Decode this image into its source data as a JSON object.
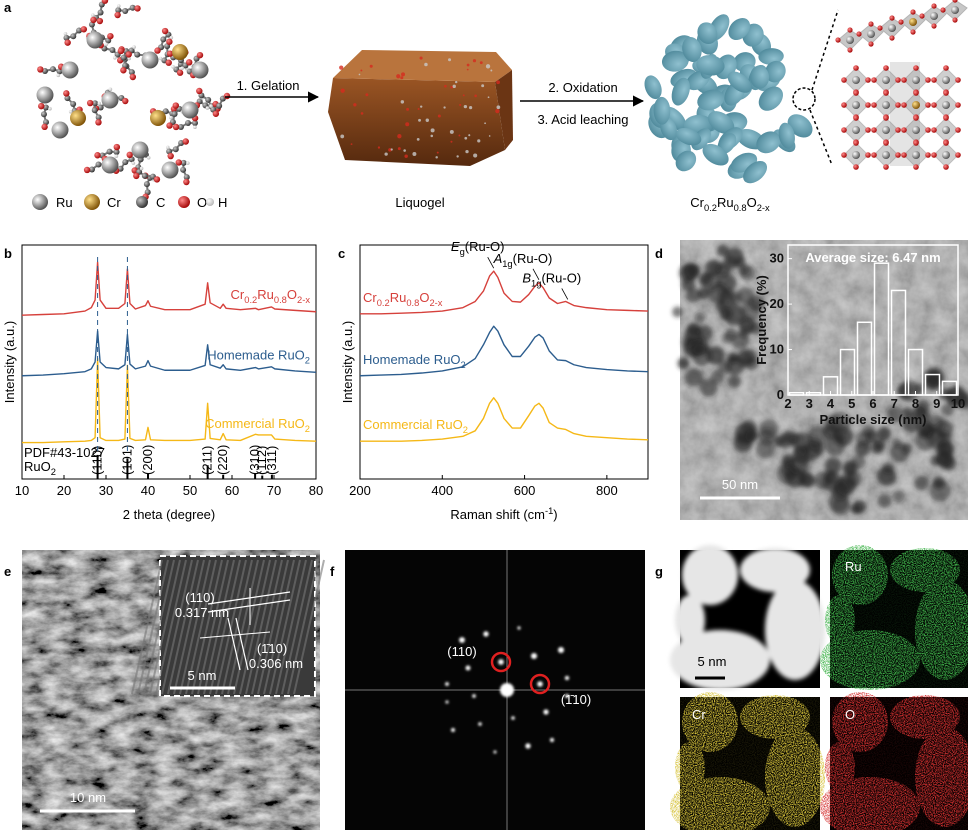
{
  "figure": {
    "panel_labels": [
      "a",
      "b",
      "c",
      "d",
      "e",
      "f",
      "g"
    ],
    "a": {
      "elements": [
        "Ru",
        "Cr",
        "C",
        "O",
        "H"
      ],
      "step1": "1. Gelation",
      "step2": "2. Oxidation",
      "step3": "3. Acid leaching",
      "gel": "Liquogel",
      "product": [
        "Cr",
        "0.2",
        "Ru",
        "0.8",
        "O",
        "2-x"
      ]
    },
    "d": {
      "scale_bar": "50 nm"
    },
    "e": {
      "plane1": "(110)",
      "d1": "0.317 nm",
      "plane2": "(1̄10)",
      "d2": "0.306 nm",
      "inset_scale": "5 nm",
      "scale_bar": "10 nm"
    },
    "f": {
      "plane1": "(110)",
      "plane2": "(1̄10)"
    },
    "g": {
      "scale_bar": "5 nm",
      "maps": [
        "Ru",
        "Cr",
        "O"
      ]
    }
  },
  "chart_data": [
    {
      "type": "line",
      "x_label": "2 theta (degree)",
      "y_label": "Intensity (a.u.)",
      "xlim": [
        10,
        80
      ],
      "xticks": [
        10,
        20,
        30,
        40,
        50,
        60,
        70,
        80
      ],
      "ylim": [
        -4,
        30
      ],
      "x": [
        10,
        15,
        20,
        25,
        26.5,
        27.4,
        28,
        28.6,
        30,
        33,
        34.5,
        35.1,
        35.7,
        37,
        39.4,
        40,
        40.6,
        44,
        50,
        53.6,
        54.2,
        54.8,
        57.2,
        57.9,
        58.6,
        62,
        65.6,
        66.3,
        69.4,
        70.2,
        75,
        80
      ],
      "series": [
        {
          "name": [
            "Cr",
            "0.2",
            "Ru",
            "0.8",
            "O",
            "2-x"
          ],
          "color": "#d6413c",
          "values": [
            19.8,
            19.9,
            20.0,
            20.4,
            20.9,
            22,
            27.5,
            22,
            20.8,
            20.8,
            21.5,
            26.5,
            21.5,
            20.7,
            21.2,
            21.9,
            21.1,
            20.6,
            20.6,
            21.4,
            24.5,
            21.6,
            20.8,
            21.4,
            20.8,
            20.6,
            20.8,
            20.6,
            21.0,
            20.7,
            20.5,
            20.3
          ]
        },
        {
          "name": [
            "Homemade RuO",
            "2"
          ],
          "color": "#2c5d8e",
          "values": [
            11,
            11.1,
            11.3,
            11.6,
            12,
            13,
            17.5,
            13,
            12.2,
            12.0,
            12.6,
            17,
            12.7,
            12,
            12.4,
            13.2,
            12.4,
            11.8,
            11.8,
            12.5,
            15.5,
            12.6,
            12.1,
            12.6,
            12.0,
            11.8,
            12.2,
            12.0,
            12.3,
            12.0,
            11.7,
            11.5
          ]
        },
        {
          "name": [
            "Commercial RuO",
            "2"
          ],
          "color": "#f5b817",
          "values": [
            1.3,
            1.3,
            1.4,
            1.5,
            1.6,
            2.0,
            13.5,
            2.0,
            1.6,
            1.6,
            1.8,
            12.5,
            1.9,
            1.6,
            1.7,
            3.5,
            1.7,
            1.6,
            1.6,
            1.8,
            7.0,
            1.9,
            1.7,
            2.6,
            1.7,
            1.6,
            2.5,
            2.4,
            2.4,
            1.8,
            1.6,
            1.5
          ]
        }
      ],
      "reference": {
        "label": "PDF#43-1027",
        "material": [
          "RuO",
          "2"
        ],
        "positions": [
          28.0,
          35.1,
          40.0,
          54.2,
          57.9,
          65.5,
          67.2,
          69.5
        ],
        "heights": [
          3.5,
          3,
          0.8,
          2,
          0.6,
          0.8,
          0.5,
          0.6
        ],
        "labels": [
          "(110)",
          "(101)",
          "(200)",
          "(211)",
          "(220)",
          "(310)",
          "(112)",
          "(311)"
        ]
      }
    },
    {
      "type": "line",
      "x_label": [
        "Raman shift (cm",
        "-1",
        ")"
      ],
      "y_label": "Intensity (a.u.)",
      "xlim": [
        200,
        900
      ],
      "xticks": [
        200,
        400,
        600,
        800
      ],
      "ylim": [
        -4,
        30
      ],
      "x": [
        200,
        250,
        300,
        350,
        400,
        450,
        480,
        500,
        515,
        525,
        535,
        550,
        570,
        590,
        610,
        625,
        635,
        645,
        660,
        680,
        700,
        720,
        750,
        800,
        850,
        900
      ],
      "series": [
        {
          "name": [
            "Cr",
            "0.2",
            "Ru",
            "0.8",
            "O",
            "2-x"
          ],
          "color": "#d6413c",
          "values": [
            20,
            20,
            20.1,
            20.2,
            20.4,
            20.9,
            21.8,
            23.3,
            25.5,
            26.2,
            25.3,
            23,
            21.8,
            21.7,
            22.8,
            24,
            24.5,
            23.8,
            22.3,
            21.5,
            21.8,
            21.2,
            20.9,
            20.6,
            20.5,
            20.4
          ]
        },
        {
          "name": [
            "Homemade RuO",
            "2"
          ],
          "color": "#2c5d8e",
          "values": [
            11,
            11.1,
            11.2,
            11.4,
            11.7,
            12.3,
            13.5,
            15.5,
            17.3,
            18.2,
            17.5,
            15.5,
            13.8,
            13.8,
            15.3,
            16.6,
            17,
            16.5,
            14.6,
            13.3,
            13.2,
            12.6,
            12.2,
            11.9,
            11.7,
            11.6
          ]
        },
        {
          "name": [
            "Commercial RuO",
            "2"
          ],
          "color": "#f5b817",
          "values": [
            1.5,
            1.5,
            1.5,
            1.6,
            1.8,
            2.2,
            3,
            4.8,
            7,
            7.8,
            7,
            4.8,
            3.4,
            3.4,
            5.2,
            6.6,
            7,
            6.3,
            4.2,
            3.4,
            3.2,
            2.6,
            2.2,
            2,
            1.8,
            1.7
          ]
        }
      ],
      "annotations": [
        {
          "text": [
            "E",
            "g",
            "(Ru-O)"
          ],
          "x": 525
        },
        {
          "text": [
            "A",
            "1g",
            "(Ru-O)"
          ],
          "x": 635
        },
        {
          "text": [
            "B",
            "1g",
            "(Ru-O)"
          ],
          "x": 705
        }
      ]
    },
    {
      "type": "histogram",
      "title": "Average size: 6.47 nm",
      "x_label": "Particle size (nm)",
      "y_label": "Frequency (%)",
      "bins": [
        2,
        2.8,
        3.6,
        4.4,
        5.2,
        6.0,
        6.8,
        7.6,
        8.4,
        9.2,
        10
      ],
      "values": [
        0.5,
        0.5,
        4,
        10,
        16,
        29,
        23,
        10,
        4.5,
        3
      ],
      "xlim": [
        2,
        10
      ],
      "xticks": [
        2,
        3,
        4,
        5,
        6,
        7,
        8,
        9,
        10
      ],
      "ylim": [
        0,
        33
      ],
      "yticks": [
        0,
        10,
        20,
        30
      ],
      "color": "#ffffff"
    }
  ]
}
